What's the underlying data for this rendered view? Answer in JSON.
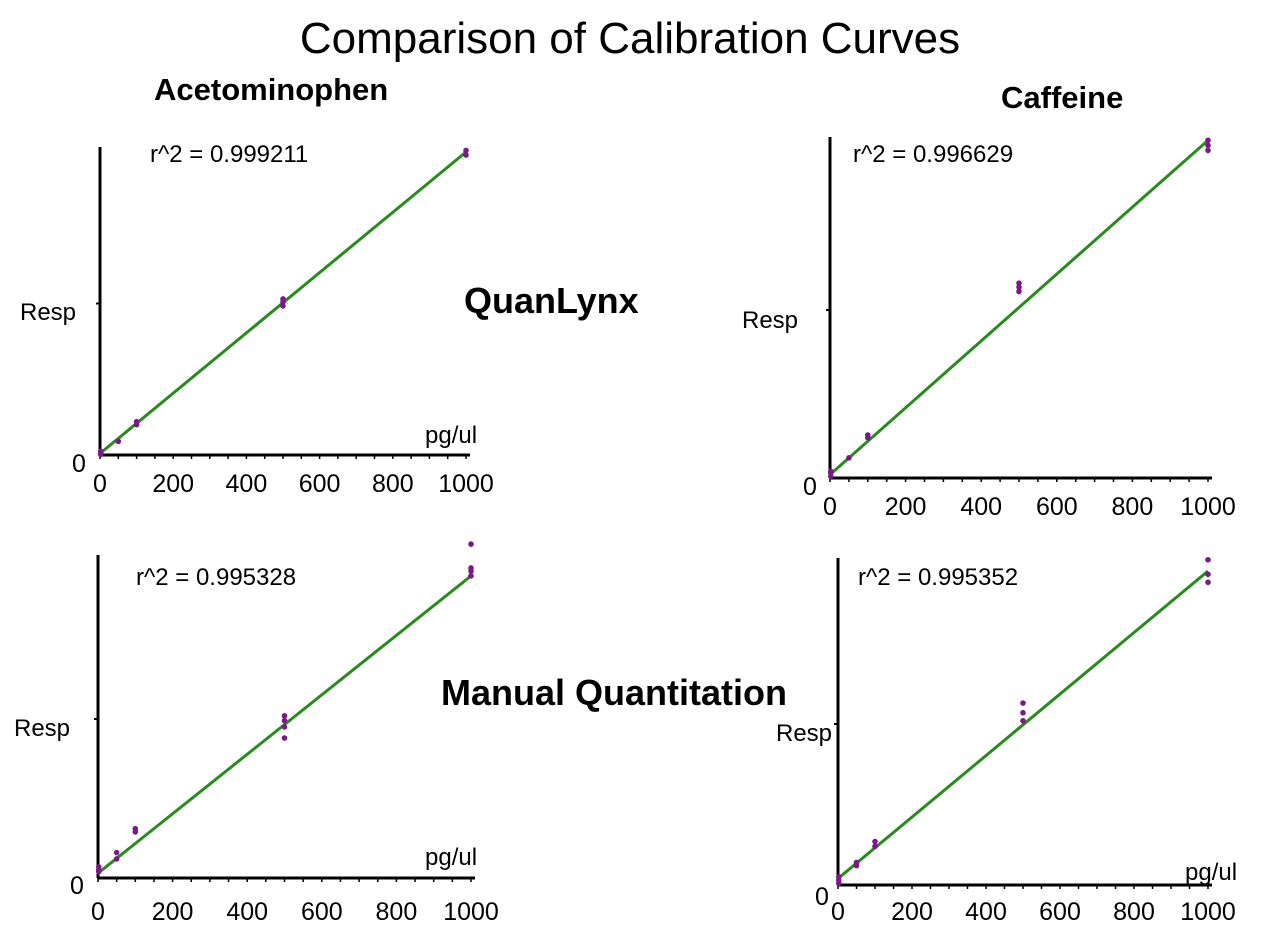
{
  "title": "Comparison of Calibration Curves",
  "columns": [
    "Acetominophen",
    "Caffeine"
  ],
  "rows": [
    "QuanLynx",
    "Manual Quantitation"
  ],
  "colors": {
    "line": "#2a8a20",
    "points": "#7a1a86",
    "axis": "#000000"
  },
  "chart_data": [
    {
      "type": "scatter",
      "title": "Acetominophen",
      "method": "QuanLynx",
      "annotation": "r^2 = 0.999211",
      "xlabel": "pg/ul",
      "ylabel": "Resp",
      "xlim": [
        0,
        1000
      ],
      "ylim": [
        0,
        1000
      ],
      "xticks": [
        "0",
        "200",
        "400",
        "600",
        "800",
        "1000"
      ],
      "yticks": [
        "0"
      ],
      "fit_line": {
        "x": [
          0,
          1000
        ],
        "y": [
          5,
          1000
        ]
      },
      "points": {
        "x": [
          2,
          2,
          2,
          50,
          100,
          100,
          500,
          500,
          500,
          1000,
          1000
        ],
        "y": [
          2,
          8,
          12,
          45,
          100,
          110,
          492,
          505,
          515,
          990,
          1005
        ]
      }
    },
    {
      "type": "scatter",
      "title": "Caffeine",
      "method": "QuanLynx",
      "annotation": "r^2 = 0.996629",
      "xlabel": "",
      "ylabel": "Resp",
      "xlim": [
        0,
        1000
      ],
      "ylim": [
        0,
        1000
      ],
      "xticks": [
        "0",
        "200",
        "400",
        "600",
        "800",
        "1000"
      ],
      "yticks": [
        "0"
      ],
      "fit_line": {
        "x": [
          0,
          1000
        ],
        "y": [
          10,
          1005
        ]
      },
      "points": {
        "x": [
          2,
          2,
          2,
          50,
          100,
          100,
          500,
          500,
          500,
          1000,
          1000,
          1000
        ],
        "y": [
          5,
          15,
          20,
          60,
          120,
          128,
          555,
          568,
          580,
          975,
          990,
          1005
        ]
      }
    },
    {
      "type": "scatter",
      "title": "",
      "method": "Manual Quantitation",
      "annotation": "r^2 = 0.995328",
      "xlabel": "pg/ul",
      "ylabel": "Resp",
      "xlim": [
        0,
        1000
      ],
      "ylim": [
        0,
        1000
      ],
      "xticks": [
        "0",
        "200",
        "400",
        "600",
        "800",
        "1000"
      ],
      "yticks": [
        "0"
      ],
      "fit_line": {
        "x": [
          0,
          1000
        ],
        "y": [
          15,
          950
        ]
      },
      "points": {
        "x": [
          2,
          2,
          2,
          50,
          50,
          100,
          100,
          500,
          500,
          500,
          500,
          1000,
          1000,
          1000,
          1000
        ],
        "y": [
          20,
          25,
          35,
          60,
          80,
          145,
          155,
          440,
          475,
          495,
          510,
          950,
          965,
          975,
          1050
        ]
      }
    },
    {
      "type": "scatter",
      "title": "",
      "method": "Manual Quantitation",
      "annotation": "r^2 = 0.995352",
      "xlabel": "pg/ul",
      "ylabel": "Resp",
      "xlim": [
        0,
        1000
      ],
      "ylim": [
        0,
        1000
      ],
      "xticks": [
        "0",
        "200",
        "400",
        "600",
        "800",
        "1000"
      ],
      "yticks": [
        "0"
      ],
      "fit_line": {
        "x": [
          0,
          1000
        ],
        "y": [
          20,
          975
        ]
      },
      "points": {
        "x": [
          2,
          2,
          2,
          50,
          50,
          100,
          100,
          500,
          500,
          500,
          1000,
          1000,
          1000
        ],
        "y": [
          5,
          15,
          25,
          60,
          70,
          120,
          135,
          510,
          535,
          565,
          940,
          965,
          1010
        ]
      }
    }
  ]
}
